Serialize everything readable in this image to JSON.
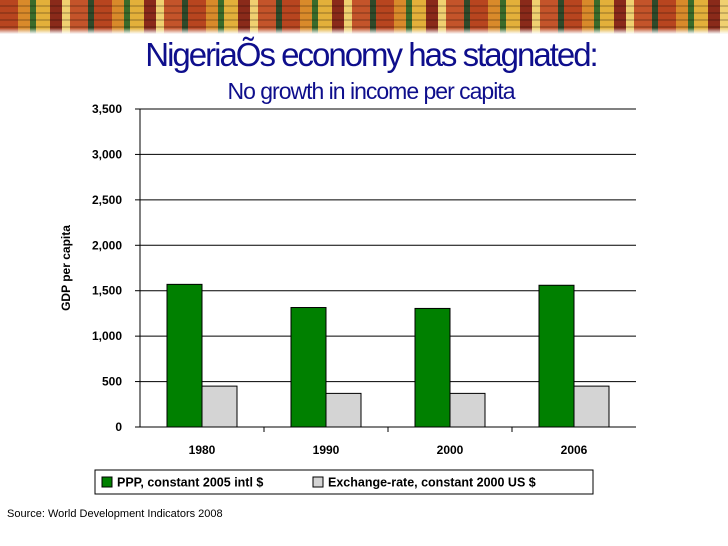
{
  "title": "NigeriaÕs economy has stagnated:",
  "subtitle": "No growth in income per capita",
  "source": "Source: World Development Indicators 2008",
  "colors": {
    "title": "#0e0e8c",
    "ppp_bar": "#008000",
    "exchange_bar": "#d4d4d4",
    "banner": [
      "#b8451f",
      "#d98a2a",
      "#3a6b2a",
      "#e3b03a"
    ]
  },
  "chart_data": {
    "type": "bar",
    "categories": [
      "1980",
      "1990",
      "2000",
      "2006"
    ],
    "series": [
      {
        "name": "PPP, constant 2005 intl $",
        "values": [
          1570,
          1315,
          1305,
          1560
        ],
        "color": "#008000"
      },
      {
        "name": "Exchange-rate, constant 2000 US $",
        "values": [
          450,
          370,
          370,
          450
        ],
        "color": "#d4d4d4"
      }
    ],
    "ylabel": "GDP per capita",
    "xlabel": "",
    "ylim": [
      0,
      3500
    ],
    "yticks": [
      0,
      500,
      1000,
      1500,
      2000,
      2500,
      3000,
      3500
    ],
    "ytick_labels": [
      "0",
      "500",
      "1,000",
      "1,500",
      "2,000",
      "2,500",
      "3,000",
      "3,500"
    ],
    "grid": true,
    "legend_position": "bottom"
  }
}
